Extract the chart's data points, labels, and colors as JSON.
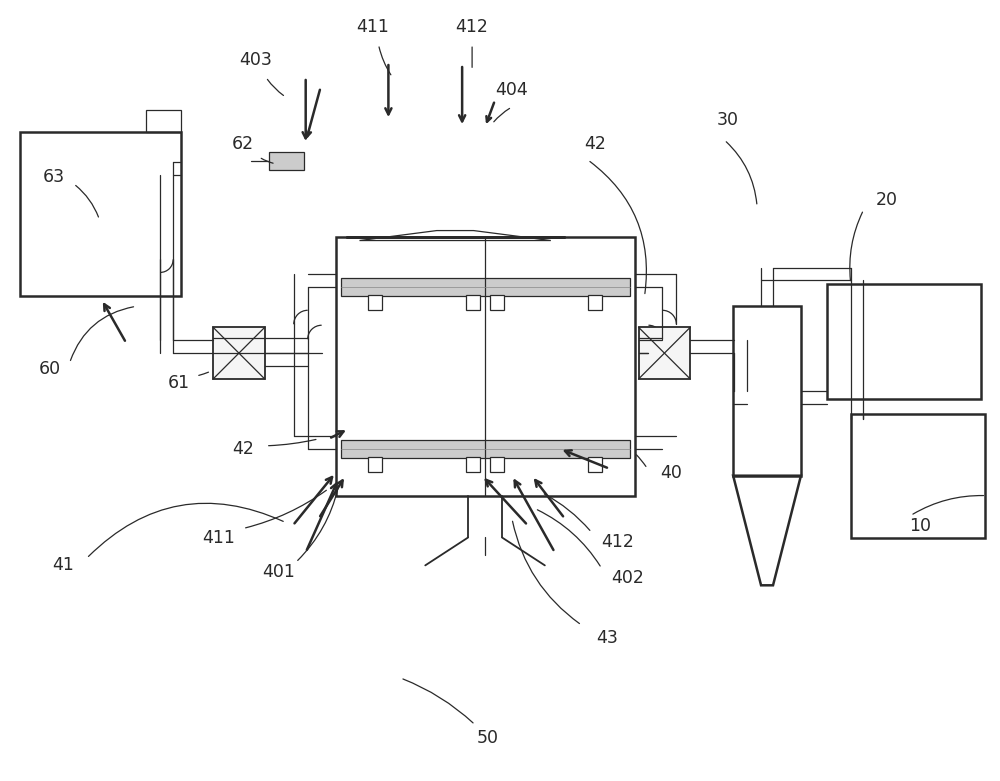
{
  "bg_color": "#ffffff",
  "line_color": "#2a2a2a",
  "gray_fill": "#b8b8b8",
  "light_gray": "#cccccc",
  "fig_width": 10.0,
  "fig_height": 7.81,
  "dpi": 100
}
